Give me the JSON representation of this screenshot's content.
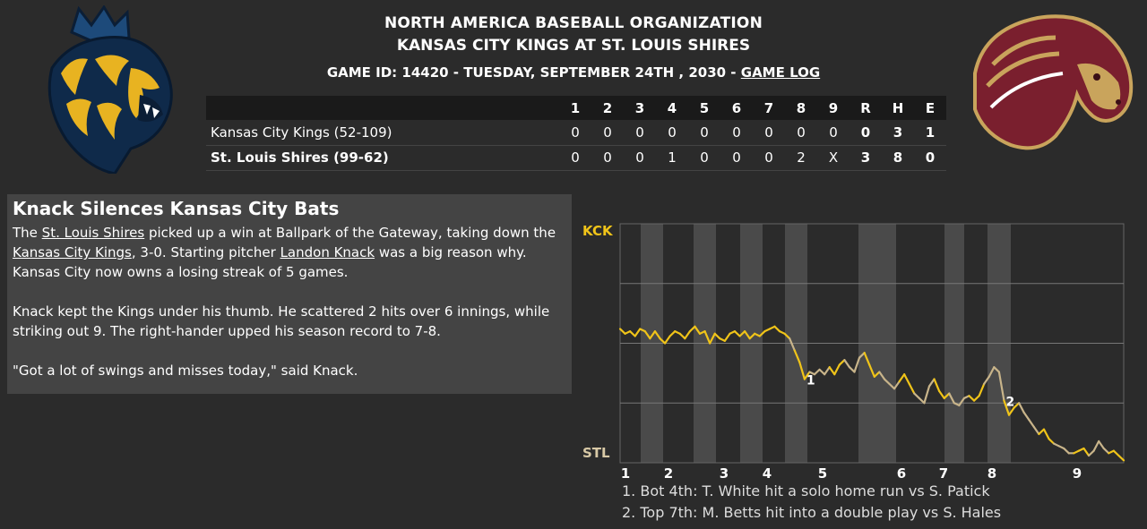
{
  "header": {
    "org": "NORTH AMERICA BASEBALL ORGANIZATION",
    "matchup": "KANSAS CITY KINGS AT ST. LOUIS SHIRES",
    "game_info": "GAME ID: 14420 - TUESDAY, SEPTEMBER 24TH , 2030 -",
    "game_log_link": "GAME LOG"
  },
  "logos": {
    "away": "lion-logo-icon",
    "home": "horse-logo-icon",
    "away_colors": [
      "#0f2a4a",
      "#e8b321"
    ],
    "home_colors": [
      "#7a1f2e",
      "#c9a45c"
    ]
  },
  "linescore": {
    "columns": [
      "1",
      "2",
      "3",
      "4",
      "5",
      "6",
      "7",
      "8",
      "9",
      "R",
      "H",
      "E"
    ],
    "rows": [
      {
        "team": "Kansas City Kings (52-109)",
        "innings": [
          "0",
          "0",
          "0",
          "0",
          "0",
          "0",
          "0",
          "0",
          "0"
        ],
        "r": "0",
        "h": "3",
        "e": "1"
      },
      {
        "team": "St. Louis Shires (99-62)",
        "innings": [
          "0",
          "0",
          "0",
          "1",
          "0",
          "0",
          "0",
          "2",
          "X"
        ],
        "r": "3",
        "h": "8",
        "e": "0"
      }
    ]
  },
  "story": {
    "headline": "Knack Silences Kansas City Bats",
    "p1_a": "The ",
    "p1_link1": "St. Louis Shires",
    "p1_b": " picked up a win at Ballpark of the Gateway, taking down the ",
    "p1_link2": "Kansas City Kings",
    "p1_c": ", 3-0. Starting pitcher ",
    "p1_link3": "Landon Knack",
    "p1_d": " was a big reason why. Kansas City now owns a losing streak of 5 games.",
    "p2": "Knack kept the Kings under his thumb. He scattered 2 hits over 6 innings, while striking out 9. The right-hander upped his season record to 7-8.",
    "p3": "\"Got a lot of swings and misses today,\" said Knack."
  },
  "chart_data": {
    "type": "line",
    "top_label": "KCK",
    "bottom_label": "STL",
    "x_tick_labels": [
      "1",
      "2",
      "3",
      "4",
      "5",
      "6",
      "7",
      "8",
      "9"
    ],
    "ylim": [
      0,
      1
    ],
    "colors": {
      "line_top_half": "#f0c419",
      "line_bottom_half": "#c8b48a",
      "stripe": "#4a4a4a"
    },
    "values": [
      0.56,
      0.54,
      0.55,
      0.53,
      0.56,
      0.55,
      0.52,
      0.55,
      0.52,
      0.5,
      0.53,
      0.55,
      0.54,
      0.52,
      0.55,
      0.57,
      0.54,
      0.55,
      0.5,
      0.54,
      0.52,
      0.51,
      0.54,
      0.55,
      0.53,
      0.55,
      0.52,
      0.54,
      0.53,
      0.55,
      0.56,
      0.57,
      0.55,
      0.54,
      0.52,
      0.47,
      0.42,
      0.35,
      0.38,
      0.37,
      0.39,
      0.37,
      0.4,
      0.37,
      0.41,
      0.43,
      0.4,
      0.38,
      0.44,
      0.46,
      0.41,
      0.36,
      0.38,
      0.35,
      0.33,
      0.31,
      0.34,
      0.37,
      0.33,
      0.29,
      0.27,
      0.25,
      0.32,
      0.35,
      0.3,
      0.27,
      0.29,
      0.25,
      0.24,
      0.27,
      0.28,
      0.26,
      0.28,
      0.33,
      0.36,
      0.4,
      0.38,
      0.26,
      0.2,
      0.23,
      0.25,
      0.21,
      0.18,
      0.15,
      0.12,
      0.14,
      0.1,
      0.08,
      0.07,
      0.06,
      0.04,
      0.04,
      0.05,
      0.06,
      0.03,
      0.05,
      0.09,
      0.06,
      0.04,
      0.05,
      0.03,
      0.01
    ],
    "markers": [
      {
        "label": "1",
        "index": 37
      },
      {
        "label": "2",
        "index": 77
      }
    ],
    "notes": [
      "1. Bot 4th: T. White hit a solo home run vs S. Patick",
      "2. Top 7th: M. Betts hit into a double play vs S. Hales"
    ]
  }
}
